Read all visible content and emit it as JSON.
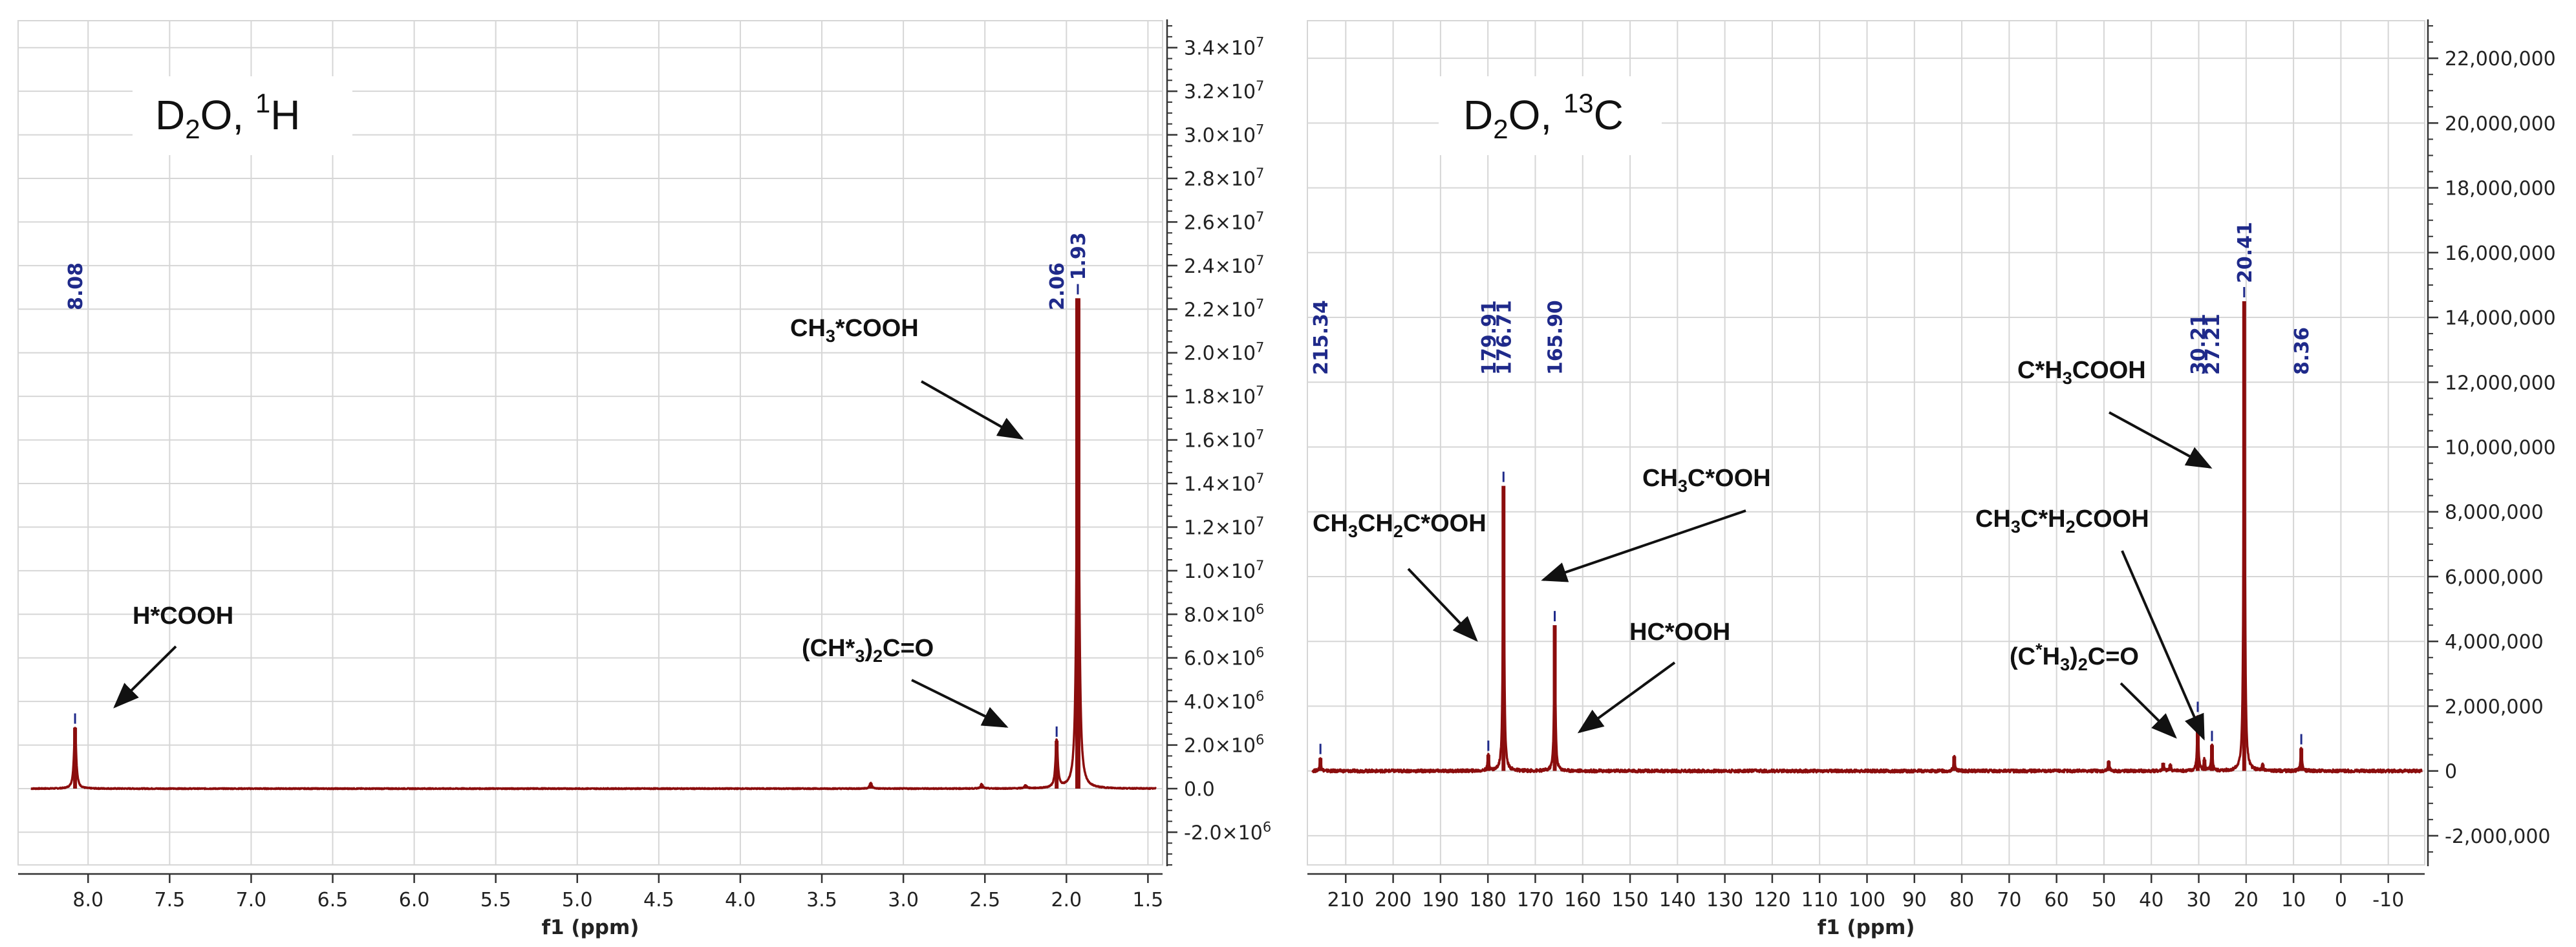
{
  "colors": {
    "spectrum": "#8b0d0d",
    "peak_label": "#1f2a8a",
    "grid": "#d6d6d6",
    "axis": "#333333",
    "arrow": "#111111"
  },
  "chart_data": [
    {
      "type": "line",
      "title": "D2O, 1H",
      "title_parts": {
        "a": "D",
        "b": "2",
        "c": "O, ",
        "d": "1",
        "e": "H"
      },
      "xlabel": "f1 (ppm)",
      "ylabel": "",
      "x_reversed": true,
      "xlim": [
        8.35,
        1.45
      ],
      "ylim": [
        -3500000.0,
        35000000.0
      ],
      "xticks": [
        8.0,
        7.5,
        7.0,
        6.5,
        6.0,
        5.5,
        5.0,
        4.5,
        4.0,
        3.5,
        3.0,
        2.5,
        2.0,
        1.5
      ],
      "xtick_labels": [
        "8.0",
        "7.5",
        "7.0",
        "6.5",
        "6.0",
        "5.5",
        "5.0",
        "4.5",
        "4.0",
        "3.5",
        "3.0",
        "2.5",
        "2.0",
        "1.5"
      ],
      "yticks": [
        -2000000.0,
        0,
        2000000.0,
        4000000.0,
        6000000.0,
        8000000.0,
        10000000.0,
        12000000.0,
        14000000.0,
        16000000.0,
        18000000.0,
        20000000.0,
        22000000.0,
        24000000.0,
        26000000.0,
        28000000.0,
        30000000.0,
        32000000.0,
        34000000.0
      ],
      "ytick_labels": [
        {
          "m": "-2.0",
          "e": "6"
        },
        {
          "m": "0.0",
          "e": ""
        },
        {
          "m": "2.0",
          "e": "6"
        },
        {
          "m": "4.0",
          "e": "6"
        },
        {
          "m": "6.0",
          "e": "6"
        },
        {
          "m": "8.0",
          "e": "6"
        },
        {
          "m": "1.0",
          "e": "7"
        },
        {
          "m": "1.2",
          "e": "7"
        },
        {
          "m": "1.4",
          "e": "7"
        },
        {
          "m": "1.6",
          "e": "7"
        },
        {
          "m": "1.8",
          "e": "7"
        },
        {
          "m": "2.0",
          "e": "7"
        },
        {
          "m": "2.2",
          "e": "7"
        },
        {
          "m": "2.4",
          "e": "7"
        },
        {
          "m": "2.6",
          "e": "7"
        },
        {
          "m": "2.8",
          "e": "7"
        },
        {
          "m": "3.0",
          "e": "7"
        },
        {
          "m": "3.2",
          "e": "7"
        },
        {
          "m": "3.4",
          "e": "7"
        }
      ],
      "peaks": [
        {
          "x": 8.08,
          "y": 2800000.0,
          "label": "8.08"
        },
        {
          "x": 2.06,
          "y": 2200000.0,
          "label": "2.06"
        },
        {
          "x": 1.93,
          "y": 22500000.0,
          "label": "1.93"
        },
        {
          "x": 3.2,
          "y": 250000.0,
          "label": ""
        },
        {
          "x": 2.52,
          "y": 200000.0,
          "label": ""
        },
        {
          "x": 2.25,
          "y": 150000.0,
          "label": ""
        }
      ],
      "annotations": [
        {
          "parts": [
            {
              "t": "CH"
            },
            {
              "t": "3",
              "s": "sub"
            },
            {
              "t": "*COOH"
            }
          ]
        },
        {
          "parts": [
            {
              "t": "H*COOH"
            }
          ]
        },
        {
          "parts": [
            {
              "t": "(CH*"
            },
            {
              "t": "3",
              "s": "sub"
            },
            {
              "t": ")"
            },
            {
              "t": "2",
              "s": "sub"
            },
            {
              "t": "C=O"
            }
          ]
        }
      ]
    },
    {
      "type": "line",
      "title": "D2O, 13C",
      "title_parts": {
        "a": "D",
        "b": "2",
        "c": "O, ",
        "d": "13",
        "e": "C"
      },
      "xlabel": "f1 (ppm)",
      "ylabel": "",
      "x_reversed": true,
      "xlim": [
        217,
        -17
      ],
      "ylim": [
        -2900000.0,
        23000000.0
      ],
      "xticks": [
        210,
        200,
        190,
        180,
        170,
        160,
        150,
        140,
        130,
        120,
        110,
        100,
        90,
        80,
        70,
        60,
        50,
        40,
        30,
        20,
        10,
        0,
        -10
      ],
      "xtick_labels": [
        "210",
        "200",
        "190",
        "180",
        "170",
        "160",
        "150",
        "140",
        "130",
        "120",
        "110",
        "100",
        "90",
        "80",
        "70",
        "60",
        "50",
        "40",
        "30",
        "20",
        "10",
        "0",
        "-10"
      ],
      "yticks": [
        -2000000.0,
        0,
        2000000.0,
        4000000.0,
        6000000.0,
        8000000.0,
        10000000.0,
        12000000.0,
        14000000.0,
        16000000.0,
        18000000.0,
        20000000.0,
        22000000.0
      ],
      "ytick_labels": [
        "-2,000,000",
        "0",
        "2,000,000",
        "4,000,000",
        "6,000,000",
        "8,000,000",
        "10,000,000",
        "12,000,000",
        "14,000,000",
        "16,000,000",
        "18,000,000",
        "20,000,000",
        "22,000,000"
      ],
      "peaks": [
        {
          "x": 215.34,
          "y": 400000.0,
          "label": "215.34"
        },
        {
          "x": 179.91,
          "y": 500000.0,
          "label": "179.91"
        },
        {
          "x": 176.71,
          "y": 8800000.0,
          "label": "176.71"
        },
        {
          "x": 165.9,
          "y": 4500000.0,
          "label": "165.90"
        },
        {
          "x": 30.21,
          "y": 1700000.0,
          "label": "30.21"
        },
        {
          "x": 27.21,
          "y": 800000.0,
          "label": "27.21"
        },
        {
          "x": 20.41,
          "y": 14500000.0,
          "label": "20.41"
        },
        {
          "x": 8.36,
          "y": 700000.0,
          "label": "8.36"
        },
        {
          "x": 81.6,
          "y": 450000.0,
          "label": ""
        },
        {
          "x": 49.0,
          "y": 300000.0,
          "label": ""
        },
        {
          "x": 37.5,
          "y": 250000.0,
          "label": ""
        },
        {
          "x": 36.0,
          "y": 200000.0,
          "label": ""
        },
        {
          "x": 28.8,
          "y": 350000.0,
          "label": ""
        },
        {
          "x": 16.5,
          "y": 200000.0,
          "label": ""
        }
      ],
      "annotations": [
        {
          "parts": [
            {
              "t": "C*H"
            },
            {
              "t": "3",
              "s": "sub"
            },
            {
              "t": "COOH"
            }
          ]
        },
        {
          "parts": [
            {
              "t": "CH"
            },
            {
              "t": "3",
              "s": "sub"
            },
            {
              "t": "C*OOH"
            }
          ]
        },
        {
          "parts": [
            {
              "t": "CH"
            },
            {
              "t": "3",
              "s": "sub"
            },
            {
              "t": "CH"
            },
            {
              "t": "2",
              "s": "sub"
            },
            {
              "t": "C*OOH"
            }
          ]
        },
        {
          "parts": [
            {
              "t": "HC*OOH"
            }
          ]
        },
        {
          "parts": [
            {
              "t": "CH"
            },
            {
              "t": "3",
              "s": "sub"
            },
            {
              "t": "C*H"
            },
            {
              "t": "2",
              "s": "sub"
            },
            {
              "t": "COOH"
            }
          ]
        },
        {
          "parts": [
            {
              "t": "(C"
            },
            {
              "t": "*",
              "s": "sup"
            },
            {
              "t": "H"
            },
            {
              "t": "3",
              "s": "sub"
            },
            {
              "t": ")"
            },
            {
              "t": "2",
              "s": "sub"
            },
            {
              "t": "C=O"
            }
          ]
        }
      ]
    }
  ]
}
